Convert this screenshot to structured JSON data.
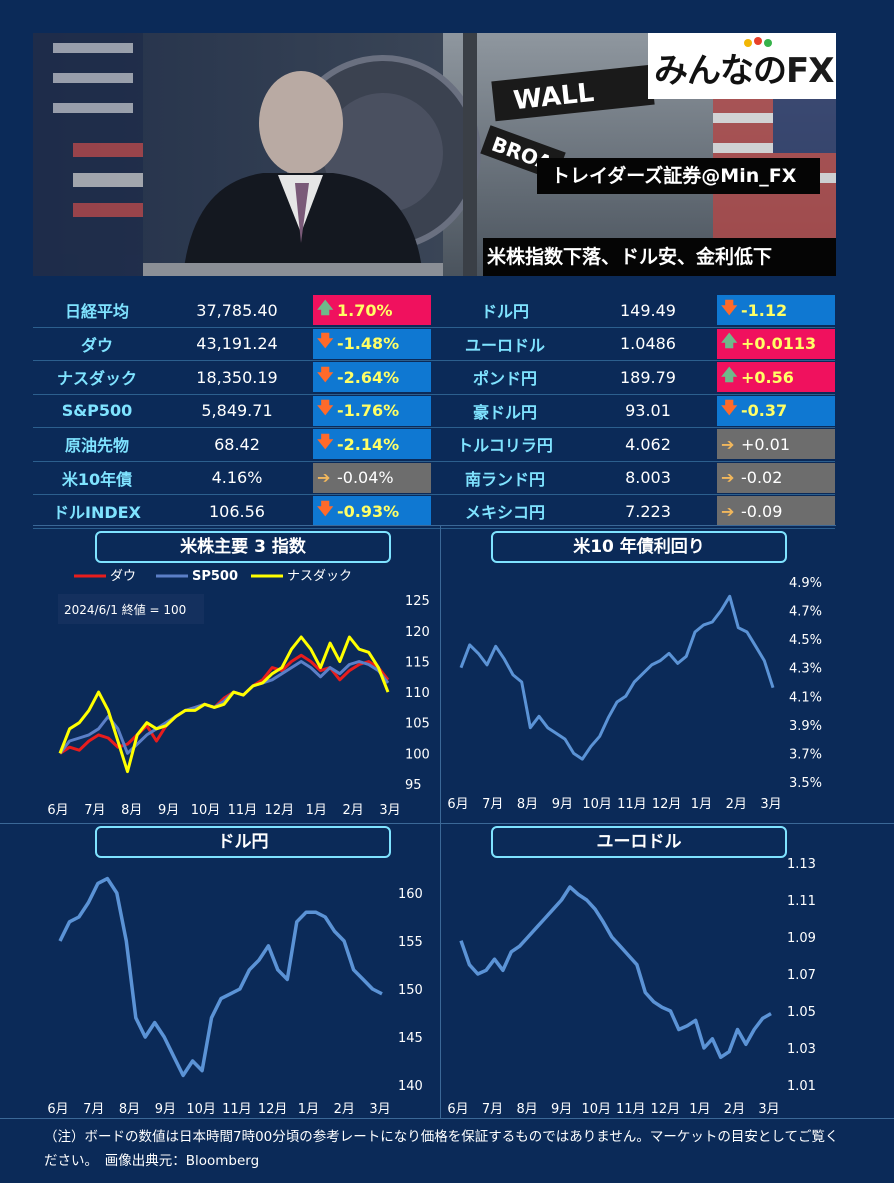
{
  "header": {
    "logo": "みんなのFX",
    "account": "トレイダーズ証券@Min_FX",
    "headline": "米株指数下落、ドル安、金利低下"
  },
  "board": {
    "left": [
      {
        "name": "日経平均",
        "value": "37,785.40",
        "change": "1.70%",
        "dir": "up"
      },
      {
        "name": "ダウ",
        "value": "43,191.24",
        "change": "-1.48%",
        "dir": "down"
      },
      {
        "name": "ナスダック",
        "value": "18,350.19",
        "change": "-2.64%",
        "dir": "down"
      },
      {
        "name": "S&P500",
        "value": "5,849.71",
        "change": "-1.76%",
        "dir": "down"
      },
      {
        "name": "原油先物",
        "value": "68.42",
        "change": "-2.14%",
        "dir": "down"
      },
      {
        "name": "米10年債",
        "value": "4.16%",
        "change": "-0.04%",
        "dir": "flat"
      },
      {
        "name": "ドルINDEX",
        "value": "106.56",
        "change": "-0.93%",
        "dir": "down"
      }
    ],
    "right": [
      {
        "name": "ドル円",
        "value": "149.49",
        "change": "-1.12",
        "dir": "down"
      },
      {
        "name": "ユーロドル",
        "value": "1.0486",
        "change": "+0.0113",
        "dir": "up"
      },
      {
        "name": "ポンド円",
        "value": "189.79",
        "change": "+0.56",
        "dir": "up"
      },
      {
        "name": "豪ドル円",
        "value": "93.01",
        "change": "-0.37",
        "dir": "down"
      },
      {
        "name": "トルコリラ円",
        "value": "4.062",
        "change": "+0.01",
        "dir": "flat"
      },
      {
        "name": "南ランド円",
        "value": "8.003",
        "change": "-0.02",
        "dir": "flat"
      },
      {
        "name": "メキシコ円",
        "value": "7.223",
        "change": "-0.09",
        "dir": "flat"
      }
    ]
  },
  "chart_data": [
    {
      "type": "line",
      "title": "米株主要 3 指数",
      "note": "2024/6/1 終値 = 100",
      "x_ticks": [
        "6月",
        "7月",
        "8月",
        "9月",
        "10月",
        "11月",
        "12月",
        "1月",
        "2月",
        "3月"
      ],
      "y_ticks": [
        "125",
        "120",
        "115",
        "110",
        "105",
        "100",
        "95"
      ],
      "ylim": [
        94,
        127
      ],
      "legend_position": "top",
      "series": [
        {
          "name": "ダウ",
          "color": "#e81d1d",
          "values": [
            100,
            101,
            100.5,
            102,
            103,
            102.5,
            101,
            101.5,
            103,
            104.5,
            102,
            104.5,
            106,
            107,
            107.5,
            108,
            107.5,
            109,
            110,
            109.5,
            111,
            112,
            114,
            113.5,
            115,
            116,
            115,
            113.5,
            114,
            112,
            113.5,
            114.5,
            115,
            114,
            112
          ]
        },
        {
          "name": "SP500",
          "color": "#5b7fc7",
          "values": [
            100,
            102,
            102.5,
            103,
            104,
            106,
            104,
            100,
            101.5,
            103,
            104,
            105,
            106,
            107,
            107.5,
            108,
            107.5,
            108.5,
            110,
            109.5,
            111,
            111.5,
            112,
            113,
            114,
            115,
            114,
            112.5,
            114,
            113,
            114.5,
            115,
            114.5,
            113.5,
            111.5
          ]
        },
        {
          "name": "ナスダック",
          "color": "#ffff00",
          "values": [
            100,
            104,
            105,
            107,
            110,
            107,
            102,
            97,
            103,
            105,
            104,
            104.5,
            106,
            107,
            107,
            108,
            107.5,
            108,
            110,
            109.5,
            111,
            111.5,
            113,
            114,
            117,
            119,
            117,
            114,
            118,
            115,
            119,
            117,
            116.5,
            114,
            110
          ]
        }
      ]
    },
    {
      "type": "line",
      "title": "米10 年債利回り",
      "x_ticks": [
        "6月",
        "7月",
        "8月",
        "9月",
        "10月",
        "11月",
        "12月",
        "1月",
        "2月",
        "3月"
      ],
      "y_ticks": [
        "4.9%",
        "4.7%",
        "4.5%",
        "4.3%",
        "4.1%",
        "3.9%",
        "3.7%",
        "3.5%"
      ],
      "ylim": [
        3.5,
        4.9
      ],
      "series": [
        {
          "name": "",
          "color": "#5b93d6",
          "values": [
            4.3,
            4.46,
            4.4,
            4.32,
            4.45,
            4.36,
            4.25,
            4.2,
            3.88,
            3.96,
            3.88,
            3.84,
            3.8,
            3.7,
            3.66,
            3.75,
            3.82,
            3.95,
            4.06,
            4.1,
            4.2,
            4.26,
            4.32,
            4.35,
            4.4,
            4.33,
            4.38,
            4.55,
            4.6,
            4.62,
            4.7,
            4.8,
            4.58,
            4.55,
            4.45,
            4.35,
            4.16
          ]
        }
      ]
    },
    {
      "type": "line",
      "title": "ドル円",
      "x_ticks": [
        "6月",
        "7月",
        "8月",
        "9月",
        "10月",
        "11月",
        "12月",
        "1月",
        "2月",
        "3月"
      ],
      "y_ticks": [
        "160",
        "155",
        "150",
        "145",
        "140"
      ],
      "ylim": [
        140,
        160
      ],
      "series": [
        {
          "name": "",
          "color": "#5b93d6",
          "values": [
            155,
            157,
            157.5,
            159,
            161,
            161.5,
            160,
            155,
            147,
            145,
            146.5,
            145,
            143,
            141,
            142.5,
            141.5,
            147,
            149,
            149.5,
            150,
            152,
            153,
            154.5,
            152,
            151,
            157,
            158,
            158,
            157.5,
            156,
            155,
            152,
            151,
            150,
            149.5
          ]
        }
      ]
    },
    {
      "type": "line",
      "title": "ユーロドル",
      "x_ticks": [
        "6月",
        "7月",
        "8月",
        "9月",
        "10月",
        "11月",
        "12月",
        "1月",
        "2月",
        "3月"
      ],
      "y_ticks": [
        "1.13",
        "1.11",
        "1.09",
        "1.07",
        "1.05",
        "1.03",
        "1.01"
      ],
      "ylim": [
        1.01,
        1.13
      ],
      "series": [
        {
          "name": "",
          "color": "#5b93d6",
          "values": [
            1.088,
            1.075,
            1.07,
            1.072,
            1.078,
            1.072,
            1.082,
            1.085,
            1.09,
            1.095,
            1.1,
            1.105,
            1.11,
            1.117,
            1.113,
            1.11,
            1.105,
            1.098,
            1.09,
            1.085,
            1.08,
            1.075,
            1.06,
            1.055,
            1.052,
            1.05,
            1.04,
            1.042,
            1.045,
            1.03,
            1.035,
            1.025,
            1.028,
            1.04,
            1.032,
            1.04,
            1.046,
            1.0486
          ]
        }
      ]
    }
  ],
  "footnote": "（注）ボードの数値は日本時間7時00分頃の参考レートになり価格を保証するものではありません。マーケットの目安としてご覧ください。　画像出典元：Bloomberg"
}
